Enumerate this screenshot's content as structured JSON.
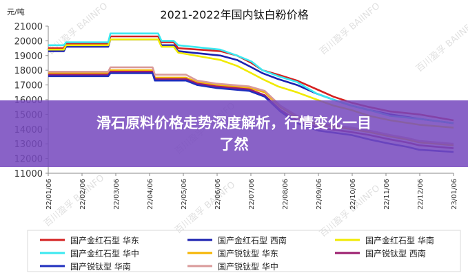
{
  "chart_data": {
    "type": "line",
    "title": "2021-2022年国内钛白粉价格",
    "ylabel": "元/吨",
    "xlabel": "",
    "ylim": [
      11000,
      21000
    ],
    "yticks": [
      11000,
      12000,
      13000,
      14000,
      15000,
      16000,
      17000,
      18000,
      19000,
      20000,
      21000
    ],
    "x_range": [
      "2022-01-06",
      "2023-01-06"
    ],
    "x_ticks": [
      "22/01/06",
      "22/02/06",
      "22/03/06",
      "22/04/06",
      "22/05/06",
      "22/06/06",
      "22/07/06",
      "22/08/06",
      "22/09/06",
      "22/10/06",
      "22/11/06",
      "22/12/06",
      "23/01/06"
    ],
    "legend_position": "bottom",
    "grid": false,
    "series": [
      {
        "name": "国产金红石型 华东",
        "color": "#d42020",
        "points": [
          [
            "2022-01-06",
            19500
          ],
          [
            "2022-01-20",
            19500
          ],
          [
            "2022-01-22",
            19800
          ],
          [
            "2022-03-01",
            19800
          ],
          [
            "2022-03-03",
            20300
          ],
          [
            "2022-04-15",
            20300
          ],
          [
            "2022-04-18",
            19900
          ],
          [
            "2022-04-29",
            19900
          ],
          [
            "2022-05-03",
            19500
          ],
          [
            "2022-06-10",
            19300
          ],
          [
            "2022-06-25",
            19000
          ],
          [
            "2022-07-08",
            18500
          ],
          [
            "2022-07-18",
            18000
          ],
          [
            "2022-08-01",
            17700
          ],
          [
            "2022-08-18",
            17300
          ],
          [
            "2022-09-05",
            16700
          ],
          [
            "2022-09-20",
            16200
          ],
          [
            "2022-10-06",
            15800
          ],
          [
            "2022-10-22",
            15500
          ],
          [
            "2022-11-10",
            15200
          ],
          [
            "2022-12-06",
            15000
          ],
          [
            "2023-01-06",
            14600
          ]
        ]
      },
      {
        "name": "国产金红石型 西南",
        "color": "#1a20b0",
        "points": [
          [
            "2022-01-06",
            19300
          ],
          [
            "2022-01-20",
            19300
          ],
          [
            "2022-01-22",
            19600
          ],
          [
            "2022-03-01",
            19600
          ],
          [
            "2022-03-03",
            20100
          ],
          [
            "2022-04-15",
            20100
          ],
          [
            "2022-04-18",
            19700
          ],
          [
            "2022-04-29",
            19700
          ],
          [
            "2022-05-03",
            19300
          ],
          [
            "2022-06-10",
            19000
          ],
          [
            "2022-06-25",
            18700
          ],
          [
            "2022-07-08",
            18200
          ],
          [
            "2022-07-18",
            17800
          ],
          [
            "2022-08-01",
            17400
          ],
          [
            "2022-08-18",
            17000
          ],
          [
            "2022-09-05",
            16400
          ],
          [
            "2022-09-20",
            16000
          ],
          [
            "2022-10-06",
            15600
          ],
          [
            "2022-10-22",
            15300
          ],
          [
            "2022-11-10",
            15000
          ],
          [
            "2022-12-06",
            14700
          ],
          [
            "2023-01-06",
            14400
          ]
        ]
      },
      {
        "name": "国产金红石型 华南",
        "color": "#f0ea00",
        "points": [
          [
            "2022-01-06",
            19400
          ],
          [
            "2022-01-20",
            19400
          ],
          [
            "2022-01-22",
            19700
          ],
          [
            "2022-03-01",
            19700
          ],
          [
            "2022-03-03",
            20100
          ],
          [
            "2022-04-15",
            20100
          ],
          [
            "2022-04-18",
            19600
          ],
          [
            "2022-04-29",
            19600
          ],
          [
            "2022-05-03",
            19200
          ],
          [
            "2022-06-10",
            18700
          ],
          [
            "2022-06-25",
            18300
          ],
          [
            "2022-07-08",
            17800
          ],
          [
            "2022-07-18",
            17400
          ],
          [
            "2022-08-01",
            16900
          ],
          [
            "2022-08-18",
            16500
          ],
          [
            "2022-09-05",
            16000
          ],
          [
            "2022-09-20",
            15600
          ],
          [
            "2022-10-06",
            15300
          ],
          [
            "2022-10-22",
            14900
          ],
          [
            "2022-11-10",
            14600
          ],
          [
            "2022-12-06",
            14300
          ],
          [
            "2023-01-06",
            14100
          ]
        ]
      },
      {
        "name": "国产金红石型 华中",
        "color": "#3ae8f0",
        "points": [
          [
            "2022-01-06",
            19700
          ],
          [
            "2022-01-20",
            19700
          ],
          [
            "2022-01-22",
            19900
          ],
          [
            "2022-03-01",
            19900
          ],
          [
            "2022-03-03",
            20500
          ],
          [
            "2022-04-15",
            20500
          ],
          [
            "2022-04-18",
            20000
          ],
          [
            "2022-04-29",
            20000
          ],
          [
            "2022-05-03",
            19700
          ],
          [
            "2022-06-10",
            19400
          ],
          [
            "2022-06-25",
            19000
          ],
          [
            "2022-07-08",
            18600
          ],
          [
            "2022-07-18",
            18000
          ],
          [
            "2022-08-01",
            17600
          ],
          [
            "2022-08-18",
            17200
          ],
          [
            "2022-09-05",
            16400
          ],
          [
            "2022-09-20",
            16000
          ],
          [
            "2022-10-06",
            15600
          ],
          [
            "2022-10-22",
            15300
          ],
          [
            "2022-11-10",
            14900
          ],
          [
            "2022-12-06",
            14700
          ],
          [
            "2023-01-06",
            14400
          ]
        ]
      },
      {
        "name": "国产锐钛型 华东",
        "color": "#f5b400",
        "points": [
          [
            "2022-01-06",
            17800
          ],
          [
            "2022-03-01",
            17800
          ],
          [
            "2022-03-03",
            18000
          ],
          [
            "2022-04-10",
            18000
          ],
          [
            "2022-04-12",
            17500
          ],
          [
            "2022-05-10",
            17500
          ],
          [
            "2022-05-20",
            17200
          ],
          [
            "2022-06-06",
            17000
          ],
          [
            "2022-07-06",
            16800
          ],
          [
            "2022-07-20",
            16500
          ],
          [
            "2022-08-03",
            15500
          ],
          [
            "2022-08-18",
            14800
          ],
          [
            "2022-09-06",
            14300
          ],
          [
            "2022-10-06",
            14000
          ],
          [
            "2022-10-22",
            13800
          ],
          [
            "2022-11-10",
            13500
          ],
          [
            "2022-11-25",
            13300
          ],
          [
            "2022-12-06",
            13100
          ],
          [
            "2023-01-06",
            12900
          ]
        ]
      },
      {
        "name": "国产锐钛型 西南",
        "color": "#9b1c6e",
        "points": [
          [
            "2022-01-06",
            17700
          ],
          [
            "2022-03-01",
            17700
          ],
          [
            "2022-03-03",
            17900
          ],
          [
            "2022-04-10",
            17900
          ],
          [
            "2022-04-12",
            17400
          ],
          [
            "2022-05-10",
            17400
          ],
          [
            "2022-05-20",
            17100
          ],
          [
            "2022-06-06",
            16900
          ],
          [
            "2022-07-06",
            16700
          ],
          [
            "2022-07-20",
            16300
          ],
          [
            "2022-08-03",
            15300
          ],
          [
            "2022-08-18",
            14600
          ],
          [
            "2022-09-06",
            14100
          ],
          [
            "2022-10-06",
            13800
          ],
          [
            "2022-10-22",
            13600
          ],
          [
            "2022-11-10",
            13300
          ],
          [
            "2022-11-25",
            13100
          ],
          [
            "2022-12-06",
            12900
          ],
          [
            "2023-01-06",
            12700
          ]
        ]
      },
      {
        "name": "国产锐钛型 华南",
        "color": "#1f2fbe",
        "points": [
          [
            "2022-01-06",
            17600
          ],
          [
            "2022-03-01",
            17600
          ],
          [
            "2022-03-03",
            17800
          ],
          [
            "2022-04-10",
            17800
          ],
          [
            "2022-04-12",
            17300
          ],
          [
            "2022-05-10",
            17300
          ],
          [
            "2022-05-20",
            17000
          ],
          [
            "2022-06-06",
            16800
          ],
          [
            "2022-07-06",
            16600
          ],
          [
            "2022-07-20",
            16200
          ],
          [
            "2022-08-03",
            15200
          ],
          [
            "2022-08-18",
            14400
          ],
          [
            "2022-09-06",
            13900
          ],
          [
            "2022-10-06",
            13600
          ],
          [
            "2022-10-22",
            13300
          ],
          [
            "2022-11-10",
            13000
          ],
          [
            "2022-11-25",
            12800
          ],
          [
            "2022-12-06",
            12600
          ],
          [
            "2023-01-06",
            12450
          ]
        ]
      },
      {
        "name": "国产锐钛型 华中",
        "color": "#d99a9a",
        "points": [
          [
            "2022-01-06",
            17900
          ],
          [
            "2022-03-01",
            17900
          ],
          [
            "2022-03-03",
            18200
          ],
          [
            "2022-04-10",
            18200
          ],
          [
            "2022-04-12",
            17700
          ],
          [
            "2022-05-10",
            17700
          ],
          [
            "2022-05-20",
            17300
          ],
          [
            "2022-06-06",
            17100
          ],
          [
            "2022-07-06",
            16900
          ],
          [
            "2022-07-20",
            16600
          ],
          [
            "2022-08-03",
            15600
          ],
          [
            "2022-08-18",
            14900
          ],
          [
            "2022-09-06",
            14400
          ],
          [
            "2022-10-06",
            14100
          ],
          [
            "2022-10-22",
            13900
          ],
          [
            "2022-11-10",
            13600
          ],
          [
            "2022-11-25",
            13400
          ],
          [
            "2022-12-06",
            13200
          ],
          [
            "2023-01-06",
            13000
          ]
        ]
      }
    ]
  },
  "watermark": "百川盈孚 BAIINFO",
  "banner": {
    "line1": "滑石原料价格走势深度解析，行情变化一目",
    "line2": "了然"
  }
}
